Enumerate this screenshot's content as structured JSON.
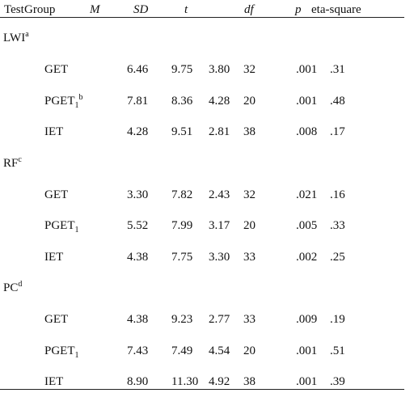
{
  "table": {
    "header": [
      "Test",
      "Group",
      "M",
      "SD",
      "t",
      "df",
      "p",
      "eta-square"
    ],
    "sections": [
      {
        "label": "LWI",
        "sup": "a",
        "rows": [
          {
            "group": "GET",
            "cells": [
              "6.46",
              "9.75",
              "3.80",
              "32",
              ".001",
              ".31"
            ]
          },
          {
            "group": "PGET",
            "sub": "1",
            "sup": "b",
            "cells": [
              "7.81",
              "8.36",
              "4.28",
              "20",
              ".001",
              ".48"
            ]
          },
          {
            "group": "IET",
            "cells": [
              "4.28",
              "9.51",
              "2.81",
              "38",
              ".008",
              ".17"
            ]
          }
        ]
      },
      {
        "label": "RF",
        "sup": "c",
        "rows": [
          {
            "group": "GET",
            "cells": [
              "3.30",
              "7.82",
              "2.43",
              "32",
              ".021",
              ".16"
            ]
          },
          {
            "group": "PGET",
            "sub": "1",
            "cells": [
              "5.52",
              "7.99",
              "3.17",
              "20",
              ".005",
              ".33"
            ]
          },
          {
            "group": "IET",
            "cells": [
              "4.38",
              "7.75",
              "3.30",
              "33",
              ".002",
              ".25"
            ]
          }
        ]
      },
      {
        "label": "PC",
        "sup": "d",
        "rows": [
          {
            "group": "GET",
            "cells": [
              "4.38",
              "9.23",
              "2.77",
              "33",
              ".009",
              ".19"
            ]
          },
          {
            "group": "PGET",
            "sub": "1",
            "cells": [
              "7.43",
              "7.49",
              "4.54",
              "20",
              ".001",
              ".51"
            ]
          },
          {
            "group": "IET",
            "cells": [
              "8.90",
              "11.30",
              "4.92",
              "38",
              ".001",
              ".39"
            ]
          }
        ]
      }
    ]
  }
}
